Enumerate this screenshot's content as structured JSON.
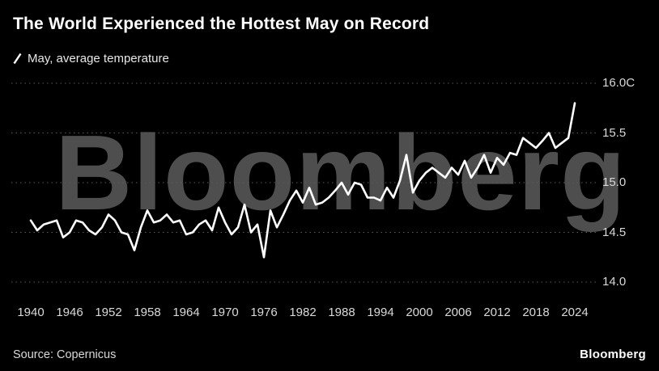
{
  "header": {
    "title": "The World Experienced the Hottest May on Record",
    "legend_label": "May, average temperature"
  },
  "watermark": "Bloomberg",
  "footer": {
    "source": "Source: Copernicus",
    "brand": "Bloomberg"
  },
  "chart_data": {
    "type": "line",
    "title": "The World Experienced the Hottest May on Record",
    "series_name": "May, average temperature",
    "unit": "C",
    "line_color": "#ffffff",
    "background_color": "#000000",
    "grid": "horizontal-dotted",
    "legend_position": "top-left",
    "ylim": [
      14.0,
      16.0
    ],
    "y_ticks": [
      {
        "value": 16.0,
        "label": "16.0C"
      },
      {
        "value": 15.5,
        "label": "15.5"
      },
      {
        "value": 15.0,
        "label": "15.0"
      },
      {
        "value": 14.5,
        "label": "14.5"
      },
      {
        "value": 14.0,
        "label": "14.0"
      }
    ],
    "x_tick_labels": [
      1940,
      1946,
      1952,
      1958,
      1964,
      1970,
      1976,
      1982,
      1988,
      1994,
      2000,
      2006,
      2012,
      2018,
      2024
    ],
    "x": [
      1940,
      1941,
      1942,
      1943,
      1944,
      1945,
      1946,
      1947,
      1948,
      1949,
      1950,
      1951,
      1952,
      1953,
      1954,
      1955,
      1956,
      1957,
      1958,
      1959,
      1960,
      1961,
      1962,
      1963,
      1964,
      1965,
      1966,
      1967,
      1968,
      1969,
      1970,
      1971,
      1972,
      1973,
      1974,
      1975,
      1976,
      1977,
      1978,
      1979,
      1980,
      1981,
      1982,
      1983,
      1984,
      1985,
      1986,
      1987,
      1988,
      1989,
      1990,
      1991,
      1992,
      1993,
      1994,
      1995,
      1996,
      1997,
      1998,
      1999,
      2000,
      2001,
      2002,
      2003,
      2004,
      2005,
      2006,
      2007,
      2008,
      2009,
      2010,
      2011,
      2012,
      2013,
      2014,
      2015,
      2016,
      2017,
      2018,
      2019,
      2020,
      2021,
      2022,
      2023,
      2024
    ],
    "values": [
      14.62,
      14.52,
      14.58,
      14.6,
      14.62,
      14.45,
      14.5,
      14.62,
      14.6,
      14.52,
      14.48,
      14.55,
      14.68,
      14.62,
      14.5,
      14.48,
      14.32,
      14.55,
      14.72,
      14.6,
      14.62,
      14.68,
      14.6,
      14.62,
      14.48,
      14.5,
      14.58,
      14.62,
      14.52,
      14.75,
      14.6,
      14.48,
      14.55,
      14.78,
      14.5,
      14.58,
      14.25,
      14.72,
      14.55,
      14.68,
      14.82,
      14.92,
      14.8,
      14.95,
      14.78,
      14.8,
      14.85,
      14.92,
      15.0,
      14.88,
      15.0,
      14.98,
      14.85,
      14.85,
      14.82,
      14.95,
      14.85,
      15.02,
      15.28,
      14.9,
      15.02,
      15.1,
      15.15,
      15.1,
      15.05,
      15.15,
      15.08,
      15.22,
      15.05,
      15.15,
      15.28,
      15.1,
      15.25,
      15.18,
      15.3,
      15.28,
      15.45,
      15.4,
      15.35,
      15.42,
      15.5,
      15.35,
      15.4,
      15.45,
      15.8
    ]
  }
}
